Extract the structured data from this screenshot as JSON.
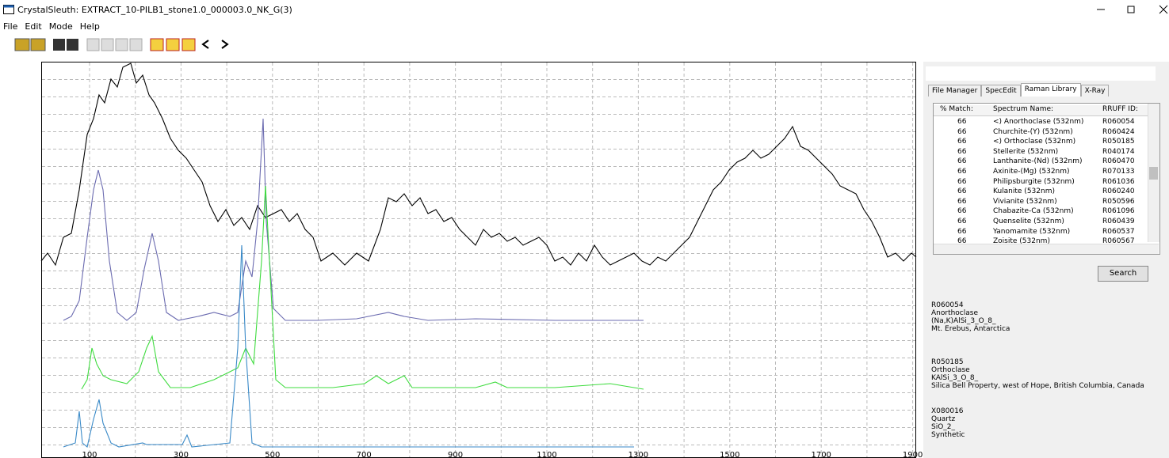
{
  "window": {
    "title": "CrystalSleuth: EXTRACT_10-PILB1_stone1.0_000003.0_NK_G(3)"
  },
  "menu": [
    "File",
    "Edit",
    "Mode",
    "Help"
  ],
  "plot": {
    "xticks": [
      100,
      300,
      500,
      700,
      900,
      1100,
      1300,
      1500,
      1700,
      1900
    ]
  },
  "tabs": [
    "File Manager",
    "SpecEdit",
    "Raman Library",
    "X-Ray"
  ],
  "table": {
    "columns": [
      "% Match:",
      "Spectrum Name:",
      "RRUFF ID:"
    ],
    "rows": [
      [
        66,
        "<) Anorthoclase  (532nm)",
        "R060054"
      ],
      [
        66,
        "Churchite-(Y)  (532nm)",
        "R060424"
      ],
      [
        66,
        "<) Orthoclase  (532nm)",
        "R050185"
      ],
      [
        66,
        "Stellerite  (532nm)",
        "R040174"
      ],
      [
        66,
        "Lanthanite-(Nd)  (532nm)",
        "R060470"
      ],
      [
        66,
        "Axinite-(Mg)  (532nm)",
        "R070133"
      ],
      [
        66,
        "Philipsburgite  (532nm)",
        "R061036"
      ],
      [
        66,
        "Kulanite  (532nm)",
        "R060240"
      ],
      [
        66,
        "Vivianite  (532nm)",
        "R050596"
      ],
      [
        66,
        "Chabazite-Ca  (532nm)",
        "R061096"
      ],
      [
        66,
        "Quenselite  (532nm)",
        "R060439"
      ],
      [
        66,
        "Yanomamite  (532nm)",
        "R060537"
      ],
      [
        66,
        "Zoisite  (532nm)",
        "R060567"
      ]
    ]
  },
  "search_button": "Search",
  "info": [
    [
      "R060054",
      "Anorthoclase",
      "(Na,K)AlSi_3_O_8_",
      "Mt. Erebus, Antarctica"
    ],
    [
      "R050185",
      "Orthoclase",
      "KAlSi_3_O_8_",
      "Silica Bell Property, west of Hope, British Columbia, Canada"
    ],
    [
      "X080016",
      "Quartz",
      "SiO_2_",
      "Synthetic"
    ]
  ]
}
